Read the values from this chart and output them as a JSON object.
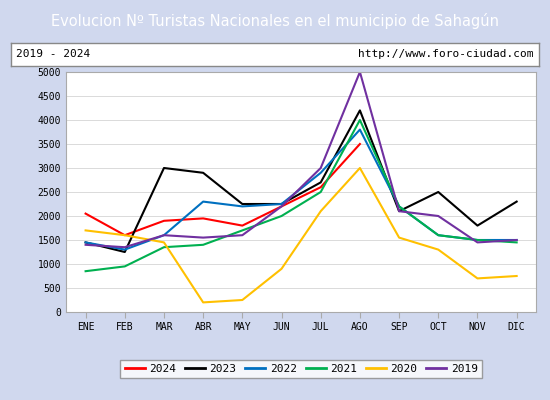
{
  "title": "Evolucion Nº Turistas Nacionales en el municipio de Sahagún",
  "subtitle_left": "2019 - 2024",
  "subtitle_right": "http://www.foro-ciudad.com",
  "title_bg_color": "#4472c4",
  "title_fg_color": "#ffffff",
  "subtitle_bg_color": "#ffffff",
  "subtitle_fg_color": "#000000",
  "plot_bg_color": "#ffffff",
  "outer_bg_color": "#d0d8ee",
  "months": [
    "ENE",
    "FEB",
    "MAR",
    "ABR",
    "MAY",
    "JUN",
    "JUL",
    "AGO",
    "SEP",
    "OCT",
    "NOV",
    "DIC"
  ],
  "ylim": [
    0,
    5000
  ],
  "yticks": [
    0,
    500,
    1000,
    1500,
    2000,
    2500,
    3000,
    3500,
    4000,
    4500,
    5000
  ],
  "series": {
    "2024": {
      "color": "#ff0000",
      "data": [
        2050,
        1600,
        1900,
        1950,
        1800,
        2200,
        2600,
        3500,
        null,
        null,
        null,
        null
      ]
    },
    "2023": {
      "color": "#000000",
      "data": [
        1450,
        1250,
        3000,
        2900,
        2250,
        2250,
        2700,
        4200,
        2100,
        2500,
        1800,
        2300
      ]
    },
    "2022": {
      "color": "#0070c0",
      "data": [
        1450,
        1300,
        1600,
        2300,
        2200,
        2250,
        2900,
        3800,
        2200,
        1600,
        1500,
        1500
      ]
    },
    "2021": {
      "color": "#00b050",
      "data": [
        850,
        950,
        1350,
        1400,
        1700,
        2000,
        2500,
        4000,
        2200,
        1600,
        1500,
        1450
      ]
    },
    "2020": {
      "color": "#ffc000",
      "data": [
        1700,
        1600,
        1450,
        200,
        250,
        900,
        2100,
        3000,
        1550,
        1300,
        700,
        750
      ]
    },
    "2019": {
      "color": "#7030a0",
      "data": [
        1400,
        1350,
        1600,
        1550,
        1600,
        2200,
        3000,
        5000,
        2100,
        2000,
        1450,
        1500
      ]
    }
  },
  "legend_order": [
    "2024",
    "2023",
    "2022",
    "2021",
    "2020",
    "2019"
  ],
  "font_family": "monospace"
}
